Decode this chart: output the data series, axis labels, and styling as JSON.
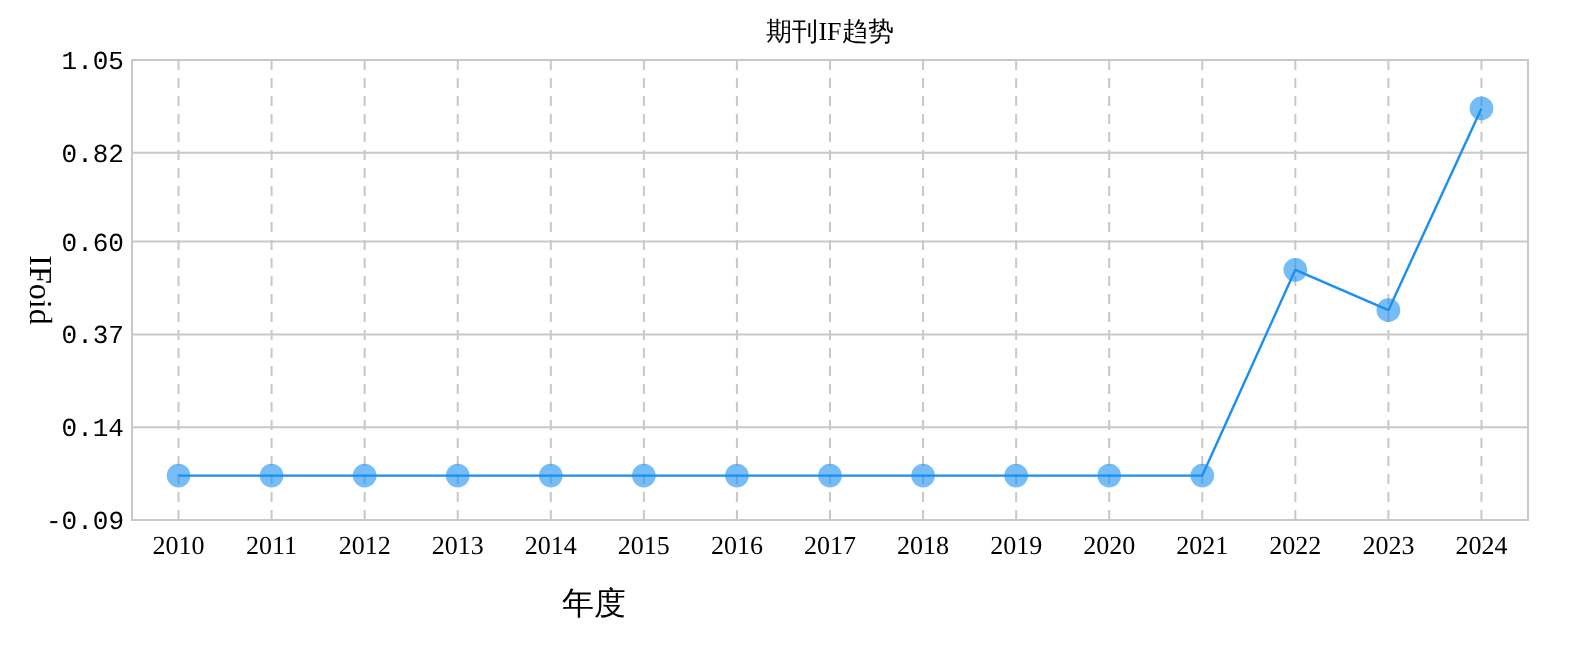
{
  "chart_data": {
    "type": "line",
    "title": "期刊IF趋势",
    "xlabel": "年度",
    "ylabel": "IFoid",
    "categories": [
      "2010",
      "2011",
      "2012",
      "2013",
      "2014",
      "2015",
      "2016",
      "2017",
      "2018",
      "2019",
      "2020",
      "2021",
      "2022",
      "2023",
      "2024"
    ],
    "series": [
      {
        "color": "#1a8ff0",
        "values": [
          0.02,
          0.02,
          0.02,
          0.02,
          0.02,
          0.02,
          0.02,
          0.02,
          0.02,
          0.02,
          0.02,
          0.02,
          0.53,
          0.43,
          0.93
        ]
      }
    ],
    "ylim": [
      -0.09,
      1.05
    ],
    "yticks": [
      {
        "value": -0.09,
        "label": "-0.09"
      },
      0.14,
      0.37,
      {
        "value": 0.6,
        "label": "0.60"
      },
      0.82,
      1.05
    ],
    "grid": true,
    "marker": "circle",
    "line_style": "solid"
  }
}
